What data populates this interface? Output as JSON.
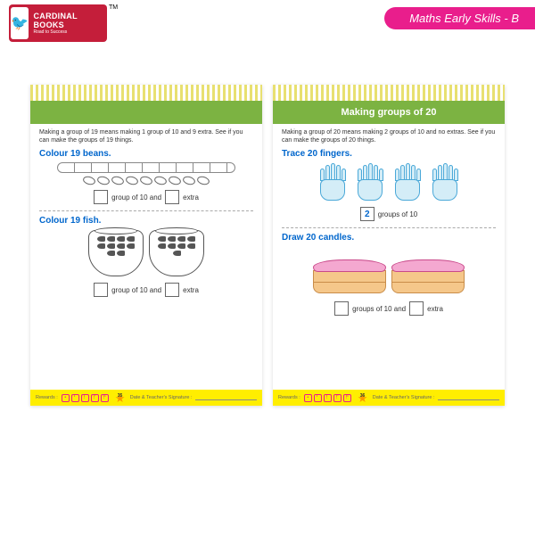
{
  "brand": {
    "name": "CARDINAL",
    "line2": "BOOKS",
    "tagline": "Road to Success",
    "tm": "TM",
    "mascot_color": "#c41e3a"
  },
  "series": {
    "label": "Maths Early Skills - B",
    "bg": "#e91e8c"
  },
  "left_page": {
    "intro": "Making a group of 19 means making 1 group of 10 and 9 extra. See if you can make the groups of 19 things.",
    "section1": {
      "title": "Colour 19 beans.",
      "answer_a": "group of 10 and",
      "answer_b": "extra"
    },
    "section2": {
      "title": "Colour 19 fish.",
      "answer_a": "group of 10 and",
      "answer_b": "extra"
    },
    "footer": {
      "rewards": "Rewards :",
      "sig": "Date & Teacher's Signature :",
      "page_num": "35"
    }
  },
  "right_page": {
    "header": "Making groups of 20",
    "intro": "Making a group of 20 means making 2 groups of 10 and no extras. See if you can make the groups of 20 things.",
    "section1": {
      "title": "Trace 20 fingers.",
      "box_val": "2",
      "answer": "groups of 10"
    },
    "section2": {
      "title": "Draw 20 candles.",
      "answer_a": "groups of 10 and",
      "answer_b": "extra"
    },
    "footer": {
      "rewards": "Rewards :",
      "sig": "Date & Teacher's Signature :",
      "page_num": "36"
    }
  },
  "colors": {
    "green": "#7cb342",
    "blue": "#0066cc",
    "yellow": "#ffee00",
    "pink": "#f4a8d0",
    "tan": "#f5c78a"
  }
}
